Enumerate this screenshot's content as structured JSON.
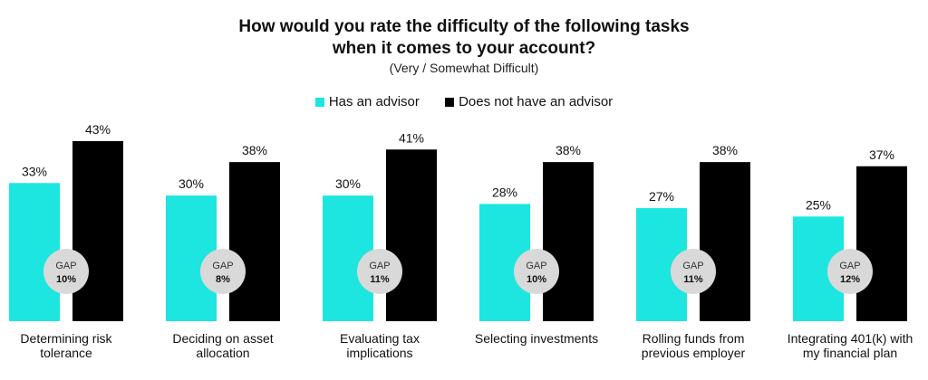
{
  "chart_data": {
    "type": "bar",
    "title_line1": "How would you rate the difficulty of the following tasks",
    "title_line2": "when it comes to your account?",
    "subtitle": "(Very / Somewhat Difficult)",
    "legend_placement": "top",
    "grid": false,
    "ylim": [
      0,
      50
    ],
    "categories": [
      [
        "Determining risk",
        "tolerance"
      ],
      [
        "Deciding on asset",
        "allocation"
      ],
      [
        "Evaluating tax",
        "implications"
      ],
      [
        "Selecting investments"
      ],
      [
        "Rolling funds from",
        "previous employer"
      ],
      [
        "Integrating 401(k) with",
        "my financial plan"
      ]
    ],
    "series": [
      {
        "name": "Has an advisor",
        "color": "#1de6e0",
        "values": [
          33,
          30,
          30,
          28,
          27,
          25
        ],
        "labels": [
          "33%",
          "30%",
          "30%",
          "28%",
          "27%",
          "25%"
        ]
      },
      {
        "name": "Does not have an advisor",
        "color": "#000000",
        "values": [
          43,
          38,
          41,
          38,
          38,
          37
        ],
        "labels": [
          "43%",
          "38%",
          "41%",
          "38%",
          "38%",
          "37%"
        ]
      }
    ],
    "gap": {
      "title": "GAP",
      "values": [
        "10%",
        "8%",
        "11%",
        "10%",
        "11%",
        "12%"
      ],
      "color": "#d9d9d9"
    }
  }
}
